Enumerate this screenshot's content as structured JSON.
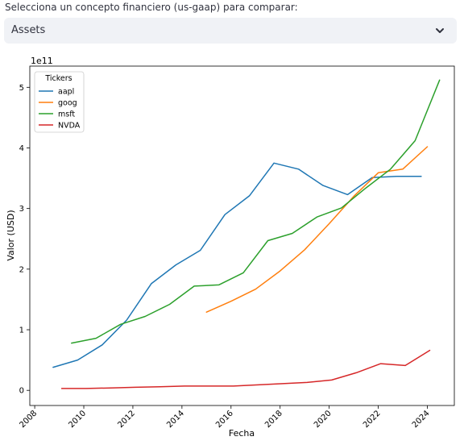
{
  "selector": {
    "label": "Selecciona un concepto financiero (us-gaap) para comparar:",
    "value": "Assets"
  },
  "chart_data": {
    "type": "line",
    "title": "",
    "xlabel": "Fecha",
    "ylabel": "Valor (USD)",
    "y_scale_label": "1e11",
    "xlim": [
      2007.8,
      2025.1
    ],
    "ylim": [
      -0.25,
      5.35
    ],
    "x_ticks": [
      2008,
      2010,
      2012,
      2014,
      2016,
      2018,
      2020,
      2022,
      2024
    ],
    "y_ticks": [
      0,
      1,
      2,
      3,
      4,
      5
    ],
    "grid": false,
    "legend": {
      "title": "Tickers",
      "position": "top-left"
    },
    "series": [
      {
        "name": "aapl",
        "color": "#1f77b4",
        "x": [
          2008.75,
          2009.75,
          2010.75,
          2011.75,
          2012.75,
          2013.75,
          2014.75,
          2015.75,
          2016.75,
          2017.75,
          2018.75,
          2019.75,
          2020.75,
          2021.75,
          2022.75,
          2023.75
        ],
        "y": [
          0.38,
          0.5,
          0.75,
          1.16,
          1.76,
          2.07,
          2.31,
          2.9,
          3.21,
          3.75,
          3.65,
          3.38,
          3.23,
          3.51,
          3.53,
          3.53
        ]
      },
      {
        "name": "goog",
        "color": "#ff7f0e",
        "x": [
          2015.0,
          2016.0,
          2017.0,
          2018.0,
          2019.0,
          2020.0,
          2021.0,
          2022.0,
          2023.0,
          2024.0
        ],
        "y": [
          1.29,
          1.47,
          1.67,
          1.97,
          2.32,
          2.75,
          3.2,
          3.59,
          3.65,
          4.02
        ]
      },
      {
        "name": "msft",
        "color": "#2ca02c",
        "x": [
          2009.5,
          2010.5,
          2011.5,
          2012.5,
          2013.5,
          2014.5,
          2015.5,
          2016.5,
          2017.5,
          2018.5,
          2019.5,
          2020.5,
          2021.5,
          2022.5,
          2023.5,
          2024.5
        ],
        "y": [
          0.78,
          0.86,
          1.09,
          1.22,
          1.42,
          1.72,
          1.74,
          1.94,
          2.47,
          2.59,
          2.86,
          3.01,
          3.34,
          3.65,
          4.12,
          5.12
        ]
      },
      {
        "name": "NVDA",
        "color": "#d62728",
        "x": [
          2009.1,
          2010.1,
          2011.1,
          2012.1,
          2013.1,
          2014.1,
          2015.1,
          2016.1,
          2017.1,
          2018.1,
          2019.1,
          2020.1,
          2021.1,
          2022.1,
          2023.1,
          2024.1
        ],
        "y": [
          0.03,
          0.03,
          0.04,
          0.05,
          0.06,
          0.07,
          0.07,
          0.07,
          0.09,
          0.11,
          0.13,
          0.17,
          0.29,
          0.44,
          0.41,
          0.66
        ]
      }
    ]
  }
}
